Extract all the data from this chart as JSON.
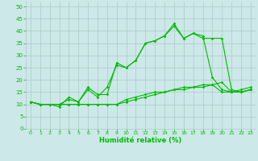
{
  "xlabel": "Humidité relative (%)",
  "background_color": "#cce8e8",
  "grid_color": "#b0c8c8",
  "line_color": "#00bb00",
  "xlim": [
    -0.5,
    23.5
  ],
  "ylim": [
    0,
    52
  ],
  "xticks": [
    0,
    1,
    2,
    3,
    4,
    5,
    6,
    7,
    8,
    9,
    10,
    11,
    12,
    13,
    14,
    15,
    16,
    17,
    18,
    19,
    20,
    21,
    22,
    23
  ],
  "yticks": [
    0,
    5,
    10,
    15,
    20,
    25,
    30,
    35,
    40,
    45,
    50
  ],
  "series": [
    [
      11,
      10,
      10,
      10,
      12,
      11,
      17,
      14,
      14,
      27,
      25,
      28,
      35,
      36,
      38,
      43,
      37,
      39,
      37,
      37,
      37,
      16,
      15,
      16
    ],
    [
      11,
      10,
      10,
      9,
      13,
      11,
      16,
      13,
      17,
      26,
      25,
      28,
      35,
      36,
      38,
      42,
      37,
      39,
      38,
      21,
      16,
      15,
      16,
      17
    ],
    [
      11,
      10,
      10,
      10,
      10,
      10,
      10,
      10,
      10,
      10,
      12,
      13,
      14,
      15,
      15,
      16,
      17,
      17,
      18,
      18,
      19,
      15,
      15,
      16
    ],
    [
      11,
      10,
      10,
      10,
      10,
      10,
      10,
      10,
      10,
      10,
      11,
      12,
      13,
      14,
      15,
      16,
      16,
      17,
      17,
      18,
      15,
      15,
      15,
      16
    ]
  ]
}
